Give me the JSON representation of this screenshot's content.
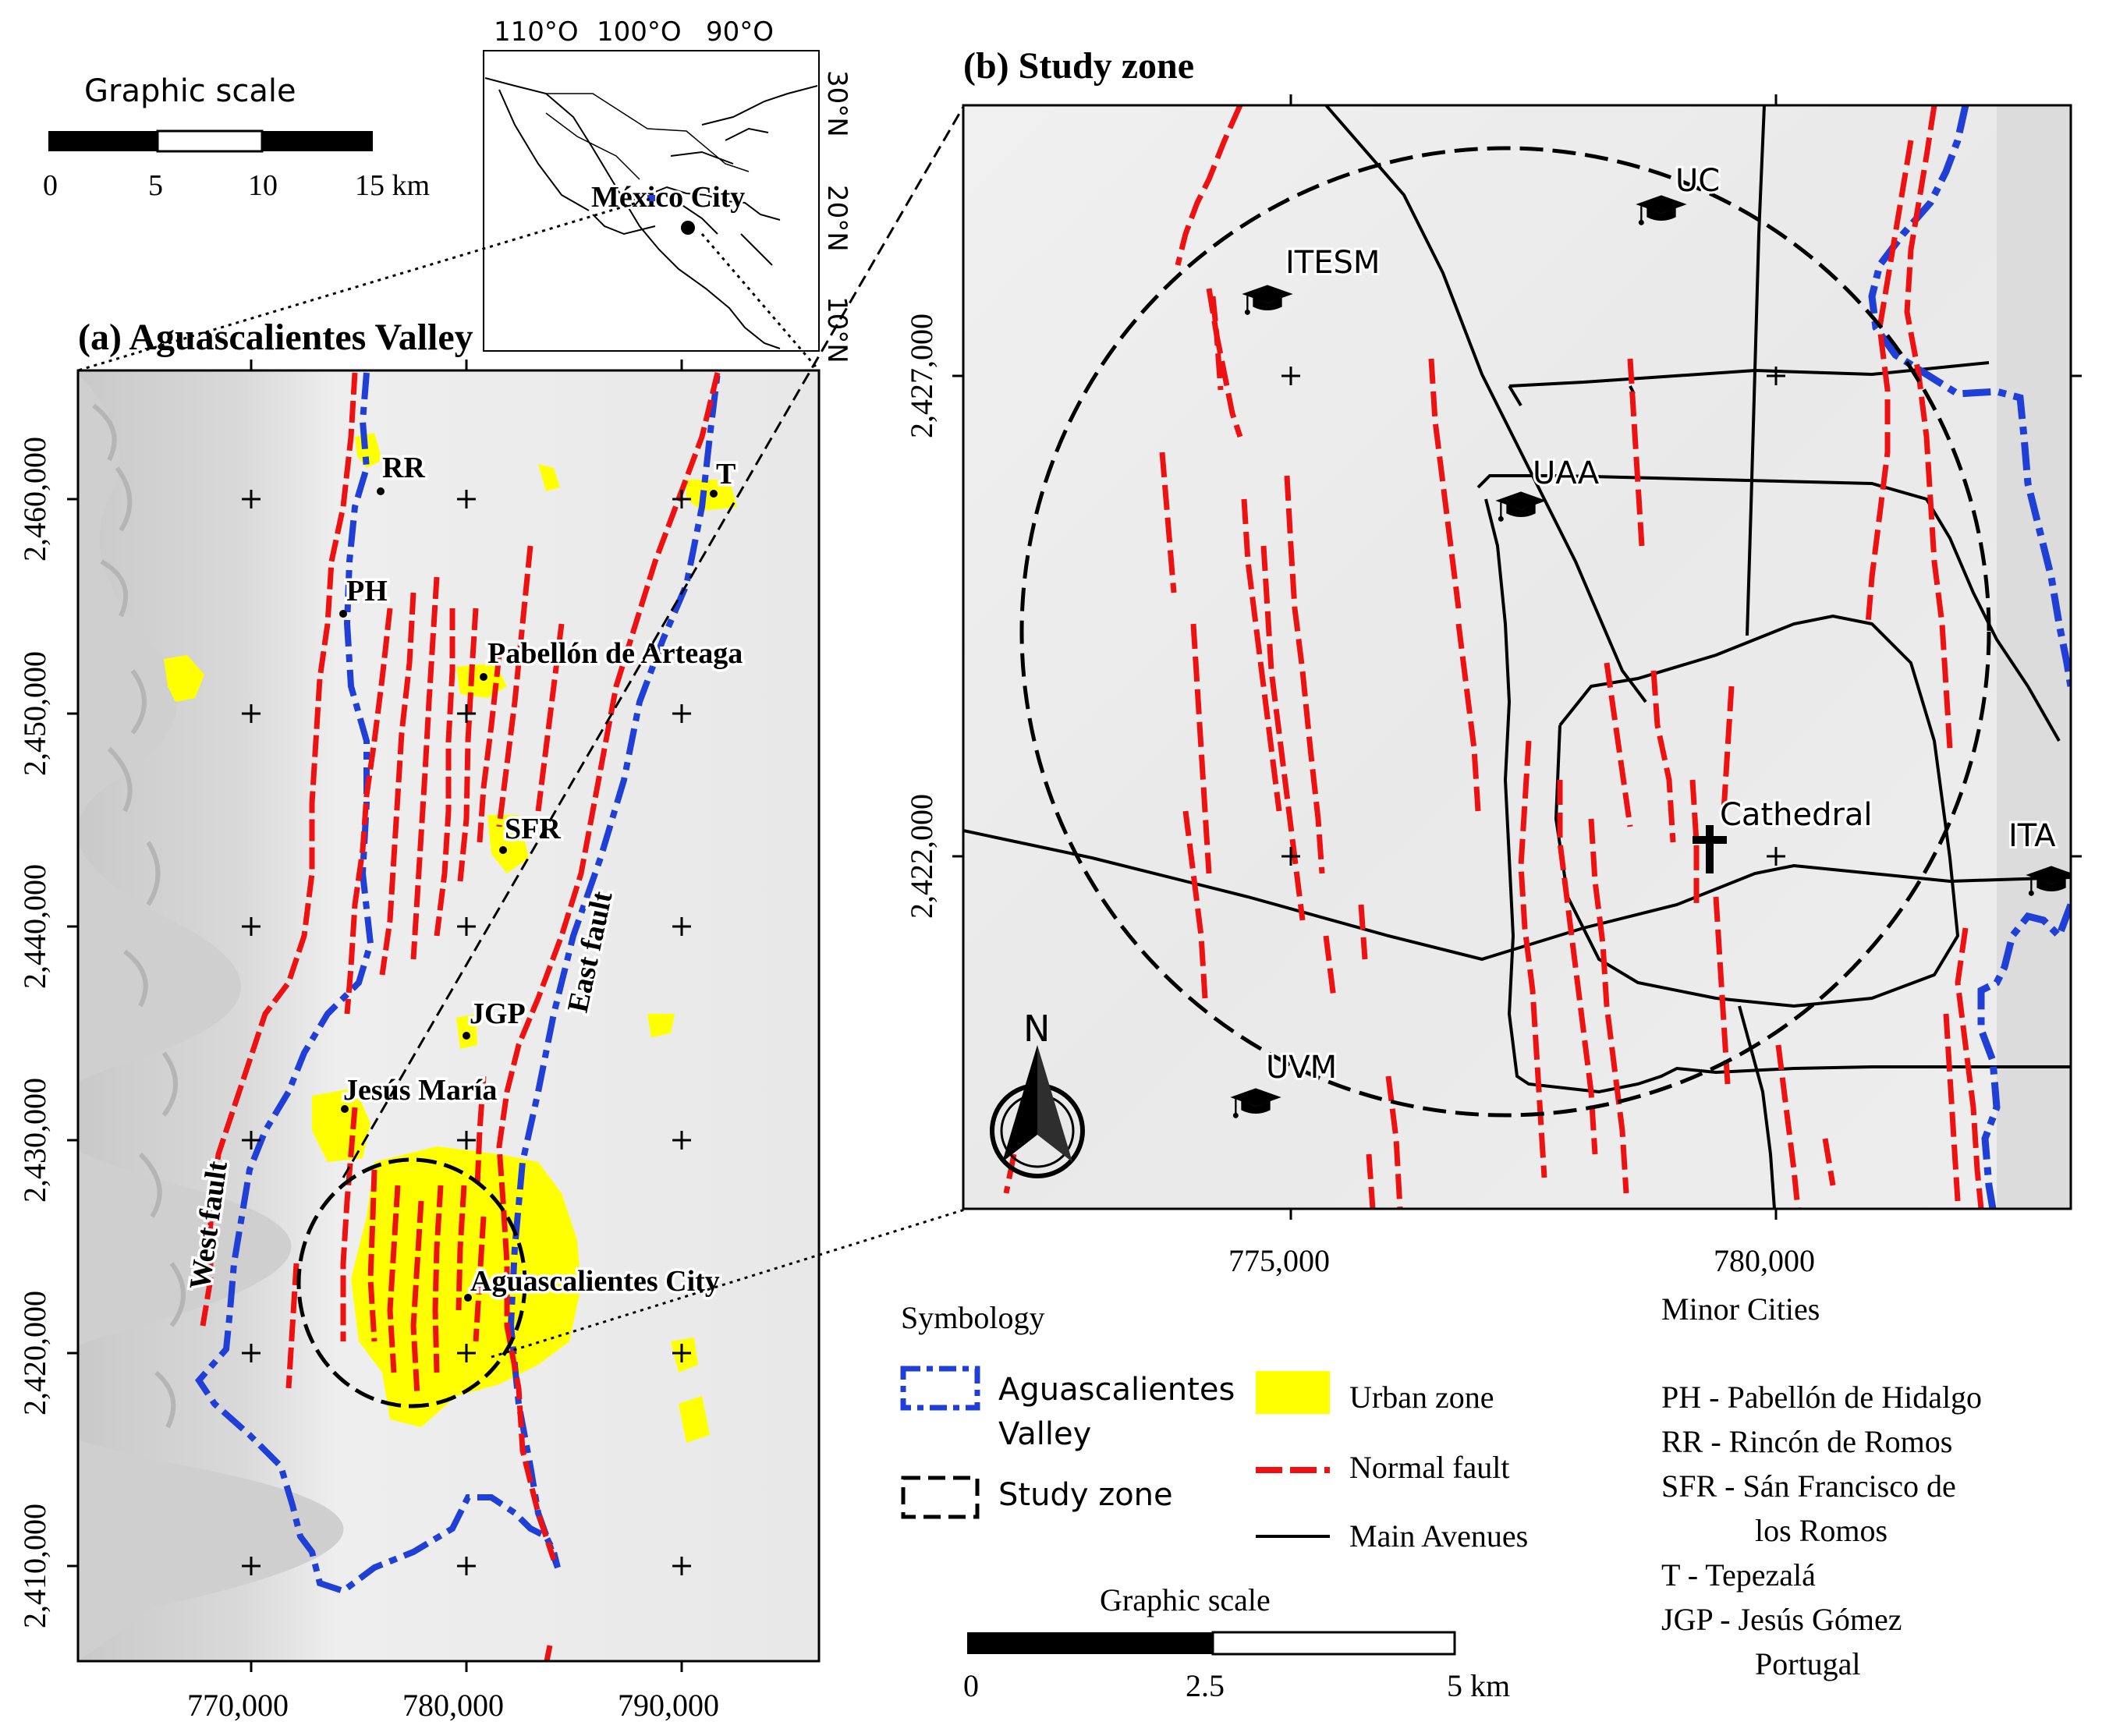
{
  "graphic_scale_top": {
    "title": "Graphic scale",
    "labels": [
      "0",
      "5",
      "10",
      "15 km"
    ]
  },
  "inset": {
    "lon_labels": [
      "110°O",
      "100°O",
      "90°O"
    ],
    "lat_labels": [
      "30°N",
      "20°N",
      "10°N"
    ],
    "city": "México City"
  },
  "panel_a": {
    "title": "(a) Aguascalientes Valley",
    "x_ticks": [
      "770,000",
      "780,000",
      "790,000"
    ],
    "y_ticks": [
      "2,460,000",
      "2,450,000",
      "2,440,000",
      "2,430,000",
      "2,420,000",
      "2,410,000"
    ],
    "towns": [
      {
        "key": "rr",
        "label": "RR"
      },
      {
        "key": "t",
        "label": "T"
      },
      {
        "key": "ph",
        "label": "PH"
      },
      {
        "key": "pab",
        "label": "Pabellón de Arteaga"
      },
      {
        "key": "sfr",
        "label": "SFR"
      },
      {
        "key": "jgp",
        "label": "JGP"
      },
      {
        "key": "jm",
        "label": "Jesús María"
      },
      {
        "key": "ags",
        "label": "Aguascalientes City"
      }
    ],
    "fault_labels": {
      "east": "East fault",
      "west": "West fault"
    }
  },
  "panel_b": {
    "title": "(b) Study zone",
    "x_ticks": [
      "775,000",
      "780,000"
    ],
    "y_ticks": [
      "2,427,000",
      "2,422,000"
    ],
    "places": [
      {
        "key": "uc",
        "label": "UC",
        "icon": "graduation-cap-icon"
      },
      {
        "key": "itesm",
        "label": "ITESM",
        "icon": "graduation-cap-icon"
      },
      {
        "key": "uaa",
        "label": "UAA",
        "icon": "graduation-cap-icon"
      },
      {
        "key": "cathedral",
        "label": "Cathedral",
        "icon": "cross-icon"
      },
      {
        "key": "ita",
        "label": "ITA",
        "icon": "graduation-cap-icon"
      },
      {
        "key": "uvm",
        "label": "UVM",
        "icon": "graduation-cap-icon"
      }
    ],
    "north": "N"
  },
  "symbology": {
    "title": "Symbology",
    "items": [
      {
        "key": "valley",
        "label": "Aguascalientes\nValley",
        "color": "#1f3fd6"
      },
      {
        "key": "study",
        "label": "Study zone",
        "color": "#000000"
      },
      {
        "key": "urban",
        "label": "Urban zone",
        "color": "#ffff00"
      },
      {
        "key": "fault",
        "label": "Normal fault",
        "color": "#ee1111"
      },
      {
        "key": "avenues",
        "label": "Main Avenues",
        "color": "#000000"
      }
    ]
  },
  "graphic_scale_bottom": {
    "title": "Graphic scale",
    "labels": [
      "0",
      "2.5",
      "5 km"
    ]
  },
  "minor_cities": {
    "title": "Minor Cities",
    "lines": [
      "PH - Pabellón de Hidalgo",
      "RR - Rincón de Romos",
      "SFR - Sán Francisco de",
      "los Romos",
      "T - Tepezalá",
      "JGP - Jesús Gómez",
      "Portugal"
    ]
  }
}
